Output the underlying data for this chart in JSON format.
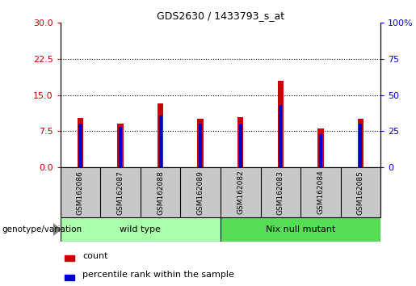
{
  "title": "GDS2630 / 1433793_s_at",
  "categories": [
    "GSM162086",
    "GSM162087",
    "GSM162088",
    "GSM162089",
    "GSM162082",
    "GSM162083",
    "GSM162084",
    "GSM162085"
  ],
  "red_values": [
    10.2,
    9.0,
    13.2,
    10.0,
    10.5,
    18.0,
    8.0,
    10.0
  ],
  "blue_values": [
    30.0,
    28.0,
    36.0,
    30.0,
    30.0,
    43.0,
    23.0,
    30.0
  ],
  "red_color": "#CC0000",
  "blue_color": "#0000CC",
  "ylim_left": [
    0,
    30
  ],
  "ylim_right": [
    0,
    100
  ],
  "yticks_left": [
    0,
    7.5,
    15,
    22.5,
    30
  ],
  "yticks_right": [
    0,
    25,
    50,
    75,
    100
  ],
  "group_label": "genotype/variation",
  "legend_count": "count",
  "legend_percentile": "percentile rank within the sample",
  "bar_width": 0.15,
  "background_color": "#ffffff",
  "plot_bg_color": "#ffffff",
  "tick_label_color_left": "#CC0000",
  "tick_label_color_right": "#0000CC",
  "xlabel_bg": "#C8C8C8",
  "wt_color": "#AAFFAA",
  "nix_color": "#55DD55"
}
